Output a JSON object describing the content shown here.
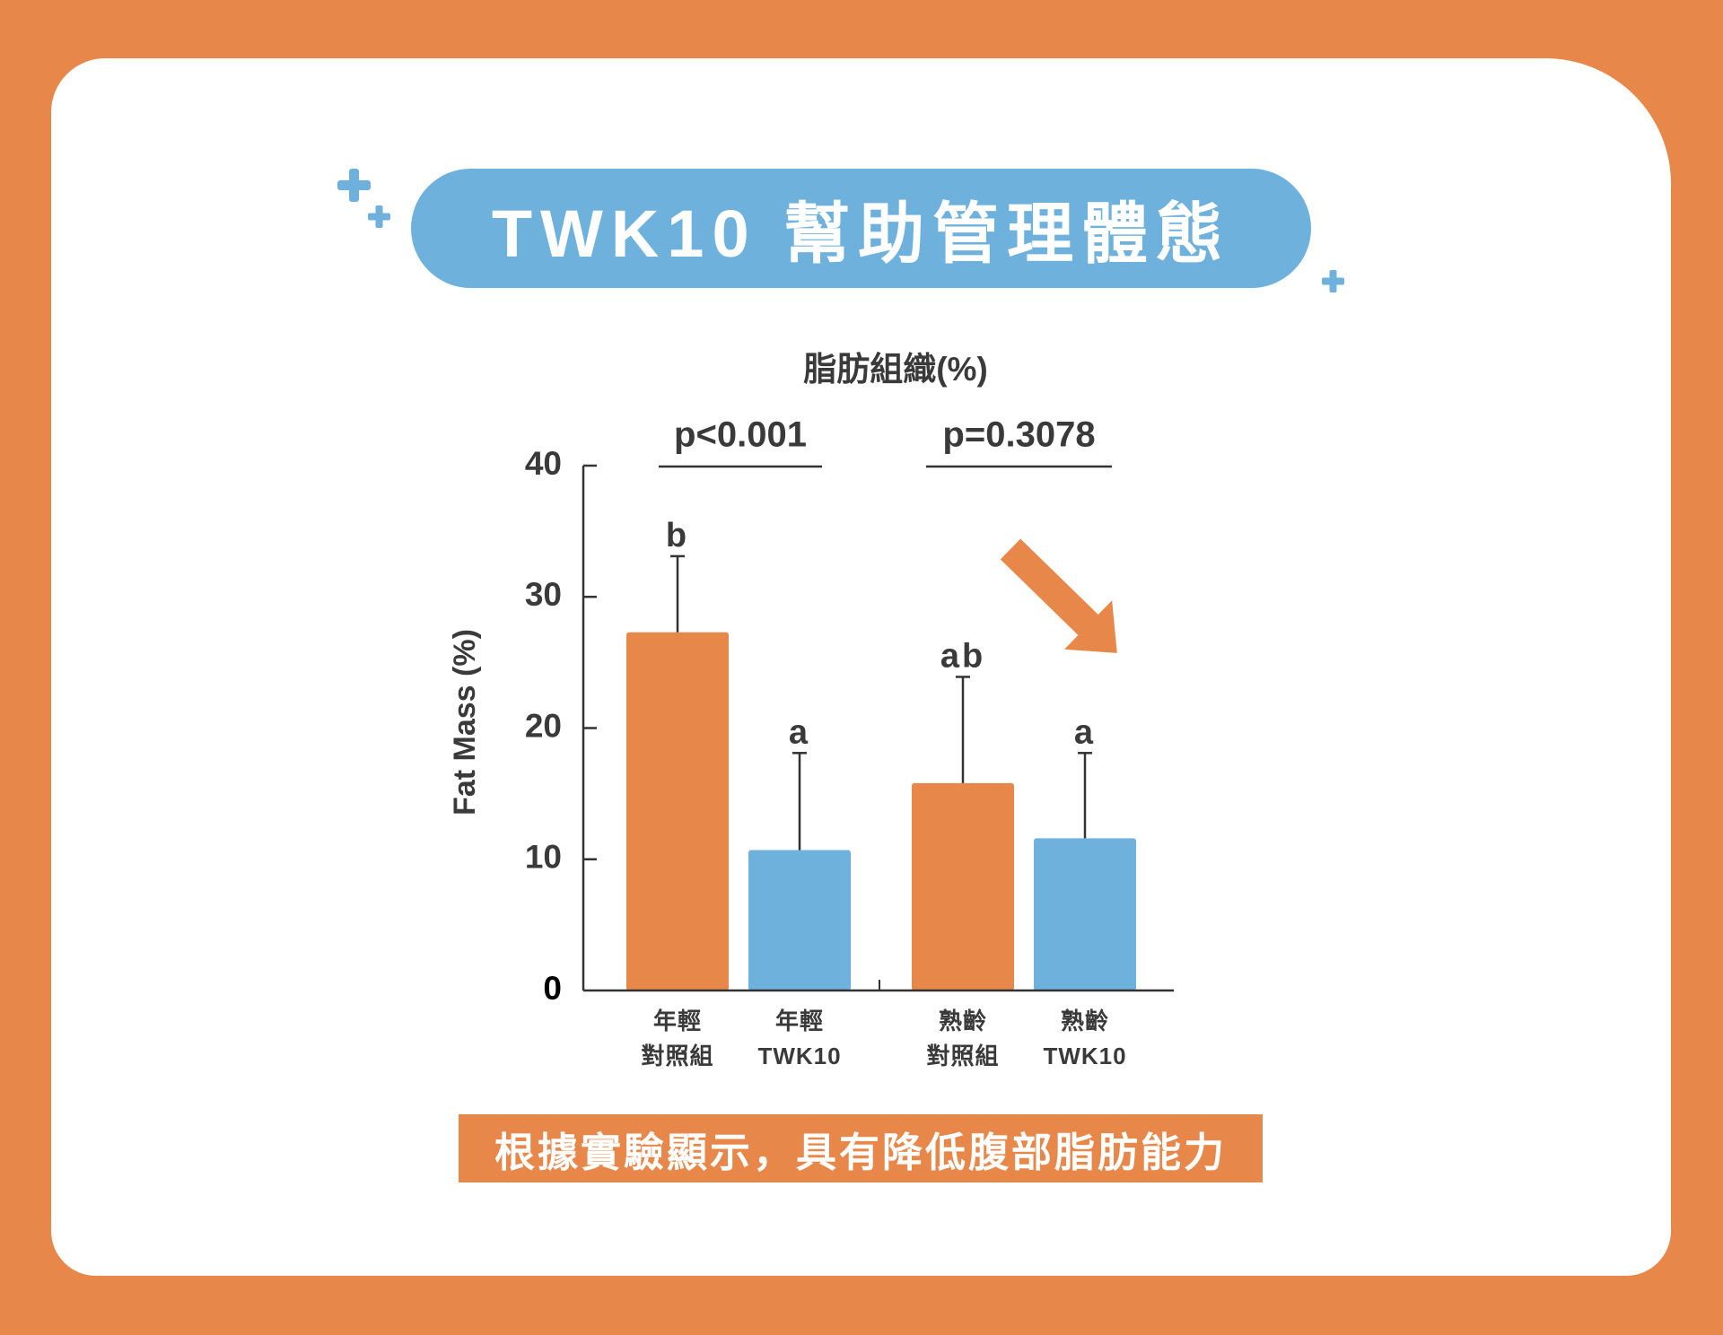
{
  "title": {
    "text": "TWK10 幫助管理體態"
  },
  "banner": {
    "text": "根據實驗顯示，具有降低腹部脂肪能力"
  },
  "colors": {
    "background": "#E8874A",
    "card": "#FFFFFF",
    "accent_blue": "#6EB1DC",
    "text": "#3A3A3A"
  },
  "icons": [
    "plus-icon",
    "plus-icon",
    "plus-icon",
    "arrow-down-right-icon"
  ],
  "chart_data": {
    "type": "bar",
    "title": "脂肪組織(%)",
    "ylabel": "Fat Mass (%)",
    "ylim": [
      0,
      40
    ],
    "yticks": [
      0,
      10,
      20,
      30,
      40
    ],
    "grid": false,
    "categories": [
      {
        "line1": "年輕",
        "line2": "對照組"
      },
      {
        "line1": "年輕",
        "line2": "TWK10"
      },
      {
        "line1": "熟齡",
        "line2": "對照組"
      },
      {
        "line1": "熟齡",
        "line2": "TWK10"
      }
    ],
    "values": [
      27.3,
      10.7,
      15.8,
      11.6
    ],
    "error_upper": [
      33.1,
      18.1,
      23.9,
      18.1
    ],
    "significance_letters": [
      "b",
      "a",
      "ab",
      "a"
    ],
    "bar_colors": [
      "#E8874A",
      "#6EB1DC",
      "#E8874A",
      "#6EB1DC"
    ],
    "comparisons": [
      {
        "label": "p<0.001",
        "groups": [
          0,
          1
        ]
      },
      {
        "label": "p=0.3078",
        "groups": [
          2,
          3
        ]
      }
    ]
  }
}
